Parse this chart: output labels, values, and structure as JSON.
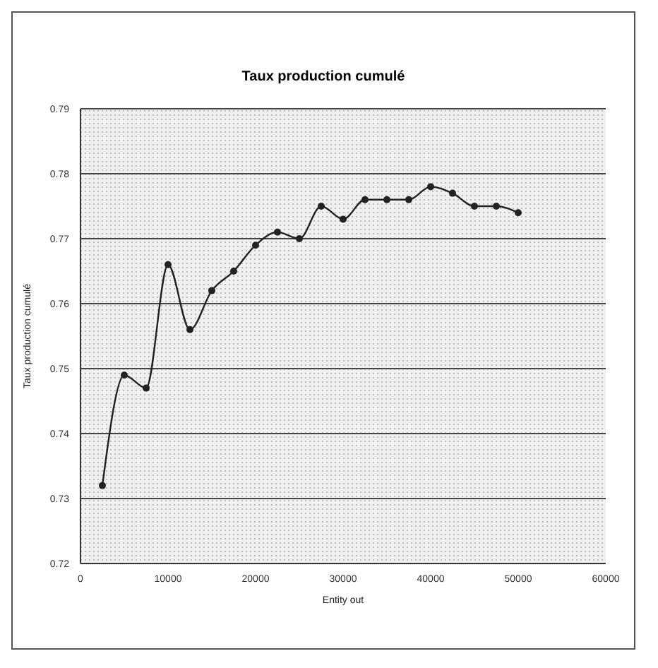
{
  "chart_data": {
    "type": "line",
    "title": "Taux production cumulé",
    "xlabel": "Entity out",
    "ylabel": "Taux production cumulé",
    "x": [
      2500,
      5000,
      7500,
      10000,
      12500,
      15000,
      17500,
      20000,
      22500,
      25000,
      27500,
      30000,
      32500,
      35000,
      37500,
      40000,
      42500,
      45000,
      47500,
      50000
    ],
    "series": [
      {
        "color": "#222222",
        "values": [
          0.732,
          0.749,
          0.747,
          0.766,
          0.756,
          0.762,
          0.765,
          0.769,
          0.771,
          0.77,
          0.775,
          0.773,
          0.776,
          0.776,
          0.776,
          0.778,
          0.777,
          0.775,
          0.775,
          0.774
        ]
      }
    ],
    "xlim": [
      0,
      60000
    ],
    "xticks": [
      0,
      10000,
      20000,
      30000,
      40000,
      50000,
      60000
    ],
    "ylim": [
      0.72,
      0.79
    ],
    "yticks": [
      0.72,
      0.73,
      0.74,
      0.75,
      0.76,
      0.77,
      0.78,
      0.79
    ],
    "grid": "y",
    "marker": "circle",
    "line_style": "solid",
    "legend": false
  }
}
